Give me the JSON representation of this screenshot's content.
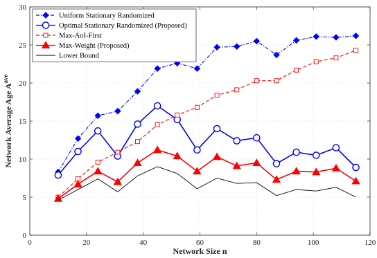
{
  "chart_data": {
    "type": "line",
    "title": "",
    "xlabel": "Network Size n",
    "ylabel": "Network Average Age A",
    "ylabel_sup": "ave",
    "xlim": [
      0,
      120
    ],
    "ylim": [
      0,
      30
    ],
    "xticks": [
      0,
      20,
      40,
      60,
      80,
      100,
      120
    ],
    "yticks": [
      0,
      5,
      10,
      15,
      20,
      25,
      30
    ],
    "grid": true,
    "legend_position": "top-left",
    "x": [
      10,
      17,
      24,
      31,
      38,
      45,
      52,
      59,
      66,
      73,
      80,
      87,
      94,
      101,
      108,
      115
    ],
    "series": [
      {
        "name": "Uniform Stationary Randomized",
        "color": "#0000ff",
        "line": "dashdot",
        "marker": "diamond-filled",
        "values": [
          8.3,
          12.7,
          15.7,
          16.3,
          18.9,
          21.9,
          22.6,
          21.9,
          24.7,
          24.8,
          25.5,
          23.7,
          25.6,
          26.1,
          26.0,
          26.2
        ]
      },
      {
        "name": "Optimal Stationary Randomized (Proposed)",
        "color": "#0000ff",
        "line": "solid",
        "marker": "circle-open",
        "values": [
          7.9,
          11.0,
          13.7,
          10.4,
          14.6,
          17.0,
          15.2,
          11.2,
          14.0,
          12.4,
          12.8,
          9.4,
          10.9,
          10.5,
          11.5,
          8.9
        ]
      },
      {
        "name": "Max-AoI-First",
        "color": "#ff0000",
        "line": "dashed",
        "marker": "square-open",
        "values": [
          5.0,
          7.4,
          9.6,
          10.9,
          12.3,
          14.5,
          15.8,
          16.8,
          18.4,
          19.1,
          20.3,
          20.3,
          21.7,
          22.8,
          23.3,
          24.3
        ]
      },
      {
        "name": "Max-Weight (Proposed)",
        "color": "#ff0000",
        "line": "solid",
        "marker": "triangle-filled",
        "values": [
          4.8,
          6.7,
          8.4,
          7.0,
          9.5,
          11.2,
          10.4,
          8.4,
          10.3,
          9.1,
          9.5,
          7.3,
          8.4,
          8.3,
          8.8,
          7.1
        ]
      },
      {
        "name": "Lower Bound",
        "color": "#000000",
        "line": "solid",
        "marker": "none",
        "values": [
          4.6,
          6.0,
          7.4,
          5.7,
          7.8,
          9.0,
          8.1,
          6.1,
          7.5,
          6.8,
          6.9,
          5.2,
          6.0,
          5.8,
          6.3,
          5.0
        ]
      }
    ]
  }
}
